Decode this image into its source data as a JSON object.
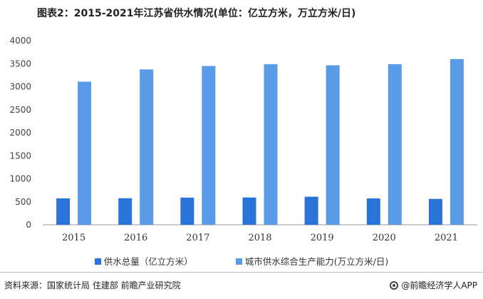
{
  "title": "图表2：2015-2021年江苏省供水情况(单位：亿立方米，万立方米/日)",
  "chart_data": {
    "type": "bar",
    "categories": [
      "2015",
      "2016",
      "2017",
      "2018",
      "2019",
      "2020",
      "2021"
    ],
    "series": [
      {
        "name": "供水总量（亿立方米）",
        "values": [
          574,
          577,
          591,
          593,
          610,
          573,
          562
        ],
        "color": "#2a73d8"
      },
      {
        "name": "城市供水综合生产能力(万立方米/日)",
        "values": [
          3110,
          3375,
          3450,
          3490,
          3465,
          3490,
          3600
        ],
        "color": "#5a9be8"
      }
    ],
    "ylim": [
      0,
      4000
    ],
    "yticks": [
      0,
      500,
      1000,
      1500,
      2000,
      2500,
      3000,
      3500,
      4000
    ],
    "grid": false,
    "legend": "bottom"
  },
  "source": "资料来源：国家统计局 住建部 前瞻产业研究院",
  "brand": "@前瞻经济学人APP"
}
